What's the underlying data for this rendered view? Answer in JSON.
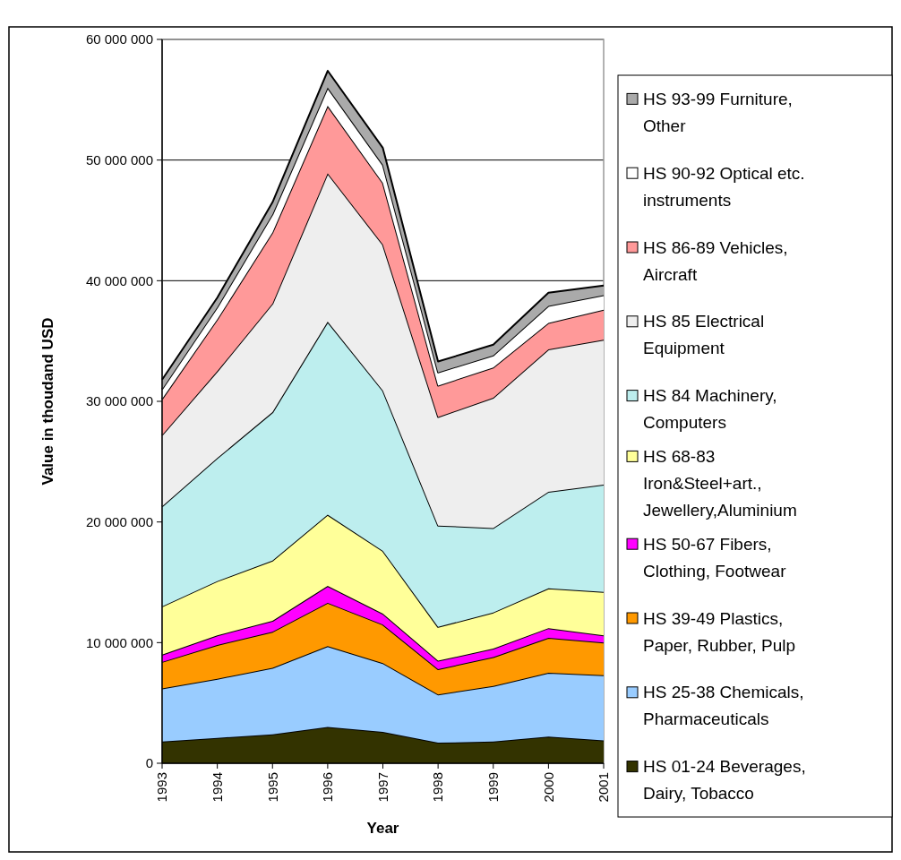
{
  "chart_data": {
    "type": "area",
    "stacked": true,
    "xlabel": "Year",
    "ylabel": "Value in thoudand USD",
    "categories": [
      "1993",
      "1994",
      "1995",
      "1996",
      "1997",
      "1998",
      "1999",
      "2000",
      "2001"
    ],
    "ylim": [
      0,
      60000000
    ],
    "yticks": [
      {
        "value": 0,
        "label": "0"
      },
      {
        "value": 10000000,
        "label": "10 000 000"
      },
      {
        "value": 20000000,
        "label": "20 000 000"
      },
      {
        "value": 30000000,
        "label": "30 000 000"
      },
      {
        "value": 40000000,
        "label": "40 000 000"
      },
      {
        "value": 50000000,
        "label": "50 000 000"
      },
      {
        "value": 60000000,
        "label": "60 000 000"
      }
    ],
    "grid": "y",
    "legend": "right",
    "series": [
      {
        "name": "HS 01-24 Beverages, Dairy, Tobacco",
        "color": "#333300",
        "values": [
          1800000,
          2100000,
          2400000,
          3000000,
          2600000,
          1700000,
          1800000,
          2200000,
          1900000
        ]
      },
      {
        "name": "HS 25-38 Chemicals, Pharmaceuticals",
        "color": "#99ccff",
        "values": [
          4400000,
          4900000,
          5500000,
          6700000,
          5700000,
          4000000,
          4600000,
          5300000,
          5400000
        ]
      },
      {
        "name": "HS 39-49 Plastics, Paper, Rubber, Pulp",
        "color": "#ff9900",
        "values": [
          2200000,
          2800000,
          3000000,
          3600000,
          3200000,
          2100000,
          2400000,
          2900000,
          2700000
        ]
      },
      {
        "name": "HS 50-67 Fibers, Clothing, Footwear",
        "color": "#ff00ff",
        "values": [
          600000,
          800000,
          900000,
          1400000,
          900000,
          700000,
          700000,
          800000,
          600000
        ]
      },
      {
        "name": "HS 68-83 Iron&Steel+art., Jewellery,Aluminium",
        "color": "#ffff99",
        "values": [
          4000000,
          4500000,
          5000000,
          5900000,
          5200000,
          2800000,
          3000000,
          3300000,
          3600000
        ]
      },
      {
        "name": "HS 84 Machinery, Computers",
        "color": "#bdeeee",
        "values": [
          8300000,
          10200000,
          12300000,
          16000000,
          13300000,
          8400000,
          7000000,
          8000000,
          8900000
        ]
      },
      {
        "name": "HS 85 Electrical Equipment",
        "color": "#eeeeee",
        "values": [
          5900000,
          7200000,
          9000000,
          12300000,
          12100000,
          9000000,
          10800000,
          11800000,
          12000000
        ]
      },
      {
        "name": "HS 86-89 Vehicles, Aircraft",
        "color": "#ff9999",
        "values": [
          3000000,
          4300000,
          5900000,
          5600000,
          5100000,
          2600000,
          2500000,
          2200000,
          2500000
        ]
      },
      {
        "name": "HS 90-92 Optical etc. instruments",
        "color": "#ffffff",
        "values": [
          800000,
          1000000,
          1500000,
          1500000,
          1500000,
          1100000,
          1000000,
          1400000,
          1200000
        ]
      },
      {
        "name": "HS 93-99 Furniture, Other",
        "color": "#aaaaaa",
        "values": [
          800000,
          800000,
          1000000,
          1400000,
          1400000,
          900000,
          900000,
          1100000,
          800000
        ]
      }
    ]
  }
}
